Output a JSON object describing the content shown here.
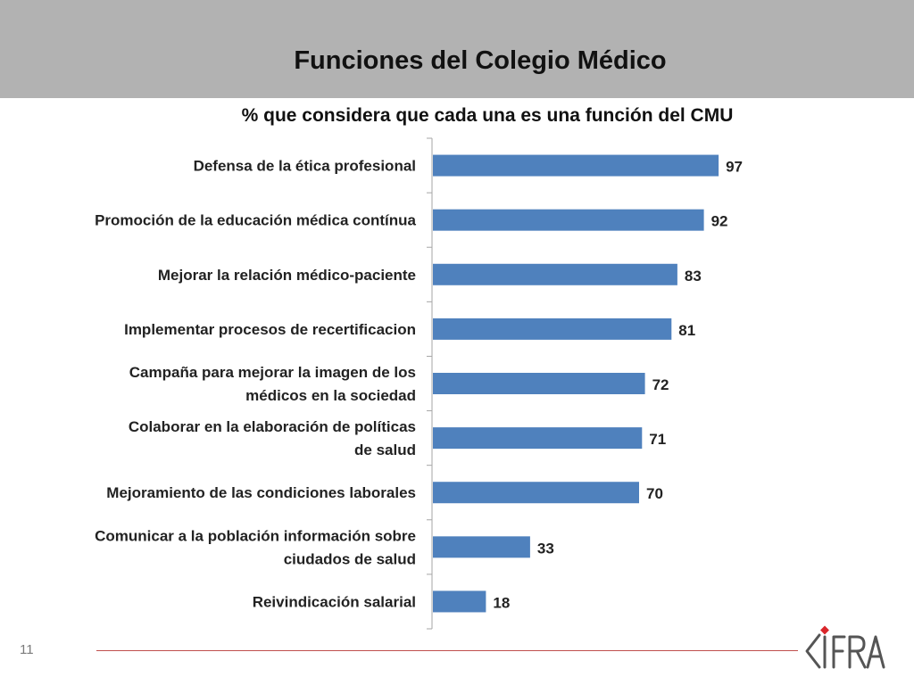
{
  "slide": {
    "title": "Funciones del Colegio Médico",
    "page_number": "11"
  },
  "logo": {
    "text": "CIFRA",
    "colors": {
      "primary": "#555555",
      "accent": "#d9262b"
    }
  },
  "colors": {
    "header_band": "#b2b2b2",
    "bar": "#4f81bd",
    "footer_line": "#c0504d"
  },
  "chart_data": {
    "type": "bar",
    "orientation": "horizontal",
    "title": "% que considera que cada una es una función del CMU",
    "categories": [
      "Defensa de la ética profesional",
      "Promoción de la educación médica contínua",
      "Mejorar la relación médico-paciente",
      "Implementar procesos de recertificacion",
      "Campaña para mejorar la imagen de los médicos en la sociedad",
      "Colaborar en la elaboración de políticas de salud",
      "Mejoramiento de las condiciones laborales",
      "Comunicar a la población información sobre ciudados de salud",
      "Reivindicación salarial"
    ],
    "values": [
      97,
      92,
      83,
      81,
      72,
      71,
      70,
      33,
      18
    ],
    "xlim": [
      0,
      100
    ],
    "data_labels": true,
    "grid": false,
    "legend": "none"
  }
}
